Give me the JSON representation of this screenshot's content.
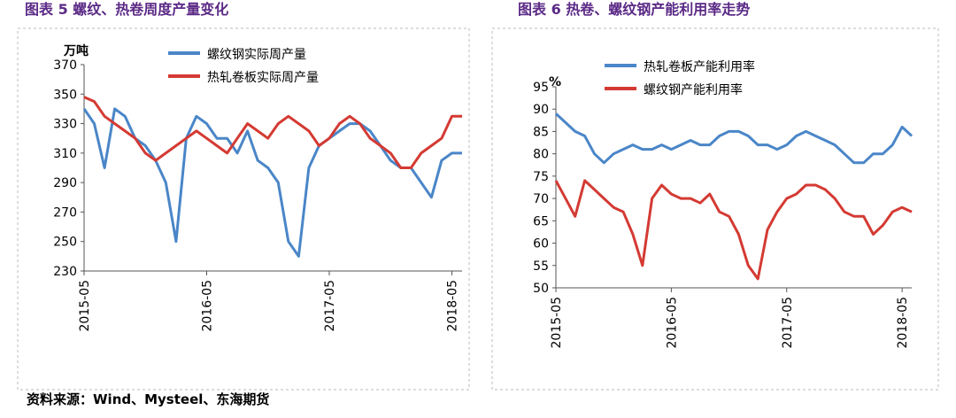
{
  "chart_data": [
    {
      "type": "line",
      "title": "图表 5 螺纹、热卷周度产量变化",
      "y_label": "万吨",
      "x": [
        "2015-05",
        "2015-06",
        "2015-07",
        "2015-08",
        "2015-09",
        "2015-10",
        "2015-11",
        "2015-12",
        "2016-01",
        "2016-02",
        "2016-03",
        "2016-04",
        "2016-05",
        "2016-06",
        "2016-07",
        "2016-08",
        "2016-09",
        "2016-10",
        "2016-11",
        "2016-12",
        "2017-01",
        "2017-02",
        "2017-03",
        "2017-04",
        "2017-05",
        "2017-06",
        "2017-07",
        "2017-08",
        "2017-09",
        "2017-10",
        "2017-11",
        "2017-12",
        "2018-01",
        "2018-02",
        "2018-03",
        "2018-04",
        "2018-05",
        "2018-06"
      ],
      "series": [
        {
          "name": "螺纹钢实际周产量",
          "color": "#4a86c8",
          "values": [
            340,
            330,
            300,
            340,
            335,
            320,
            315,
            305,
            290,
            250,
            320,
            335,
            330,
            320,
            320,
            310,
            325,
            305,
            300,
            290,
            250,
            240,
            300,
            315,
            320,
            325,
            330,
            330,
            325,
            315,
            305,
            300,
            300,
            290,
            280,
            305,
            310,
            310
          ]
        },
        {
          "name": "热轧卷板实际周产量",
          "color": "#d43a33",
          "values": [
            348,
            345,
            335,
            330,
            325,
            320,
            310,
            305,
            310,
            315,
            320,
            325,
            320,
            315,
            310,
            320,
            330,
            325,
            320,
            330,
            335,
            330,
            325,
            315,
            320,
            330,
            335,
            330,
            320,
            315,
            310,
            300,
            300,
            310,
            315,
            320,
            335,
            335
          ]
        }
      ],
      "ylim": [
        230,
        370
      ],
      "yticks": [
        230,
        250,
        270,
        290,
        310,
        330,
        350,
        370
      ],
      "xticks": [
        "2015-05",
        "2016-05",
        "2017-05",
        "2018-05"
      ]
    },
    {
      "type": "line",
      "title": "图表 6 热卷、螺纹钢产能利用率走势",
      "y_label": "%",
      "x": [
        "2015-05",
        "2015-06",
        "2015-07",
        "2015-08",
        "2015-09",
        "2015-10",
        "2015-11",
        "2015-12",
        "2016-01",
        "2016-02",
        "2016-03",
        "2016-04",
        "2016-05",
        "2016-06",
        "2016-07",
        "2016-08",
        "2016-09",
        "2016-10",
        "2016-11",
        "2016-12",
        "2017-01",
        "2017-02",
        "2017-03",
        "2017-04",
        "2017-05",
        "2017-06",
        "2017-07",
        "2017-08",
        "2017-09",
        "2017-10",
        "2017-11",
        "2017-12",
        "2018-01",
        "2018-02",
        "2018-03",
        "2018-04",
        "2018-05",
        "2018-06"
      ],
      "series": [
        {
          "name": "热轧卷板产能利用率",
          "color": "#4a86c8",
          "values": [
            89,
            87,
            85,
            84,
            80,
            78,
            80,
            81,
            82,
            81,
            81,
            82,
            81,
            82,
            83,
            82,
            82,
            84,
            85,
            85,
            84,
            82,
            82,
            81,
            82,
            84,
            85,
            84,
            83,
            82,
            80,
            78,
            78,
            80,
            80,
            82,
            86,
            84
          ]
        },
        {
          "name": "螺纹钢产能利用率",
          "color": "#d43a33",
          "values": [
            74,
            70,
            66,
            74,
            72,
            70,
            68,
            67,
            62,
            55,
            70,
            73,
            71,
            70,
            70,
            69,
            71,
            67,
            66,
            62,
            55,
            52,
            63,
            67,
            70,
            71,
            73,
            73,
            72,
            70,
            67,
            66,
            66,
            62,
            64,
            67,
            68,
            67
          ]
        }
      ],
      "ylim": [
        50,
        95
      ],
      "yticks": [
        50,
        55,
        60,
        65,
        70,
        75,
        80,
        85,
        90,
        95
      ],
      "xticks": [
        "2015-05",
        "2016-05",
        "2017-05",
        "2018-05"
      ]
    }
  ],
  "source": "资料来源：Wind、Mysteel、东海期货"
}
